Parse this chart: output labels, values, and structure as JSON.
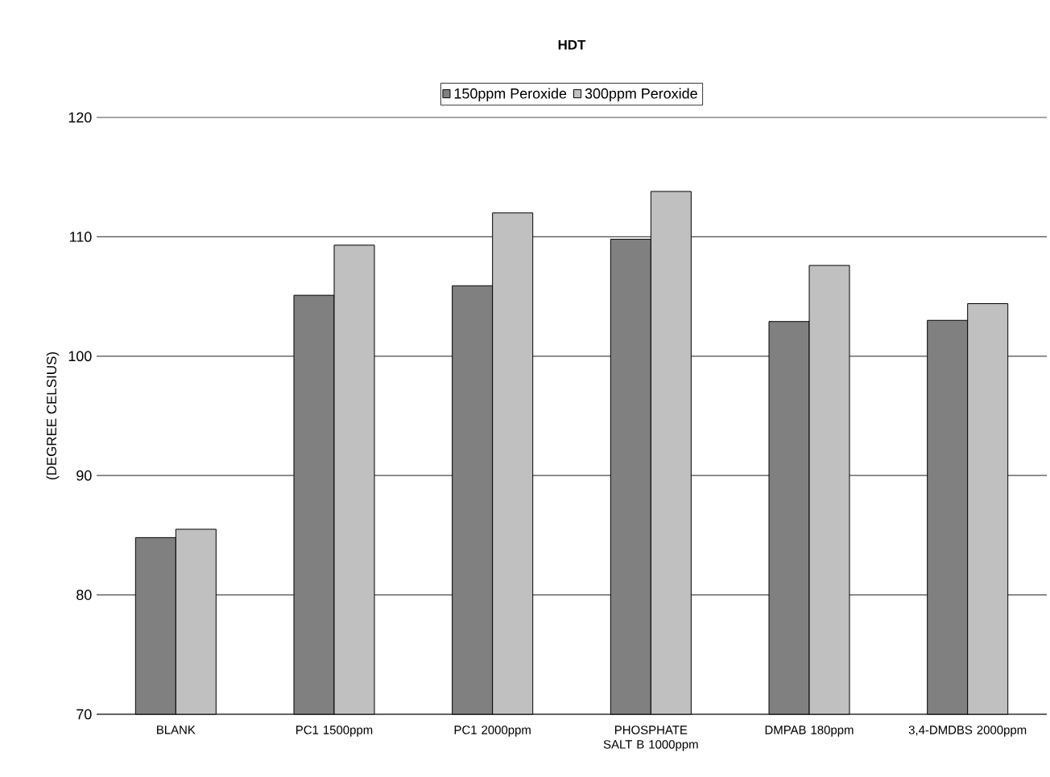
{
  "chart_data": {
    "type": "bar",
    "title": "HDT",
    "ylabel": "(DEGREE CELSIUS)",
    "categories": [
      "BLANK",
      "PC1 1500ppm",
      "PC1 2000ppm",
      "PHOSPHATE SALT B 1000ppm",
      "DMPAB 180ppm",
      "3,4-DMDBS 2000ppm"
    ],
    "series": [
      {
        "name": "150ppm Peroxide",
        "color": "#808080",
        "values": [
          84.8,
          105.1,
          105.9,
          109.8,
          102.9,
          103.0
        ]
      },
      {
        "name": "300ppm Peroxide",
        "color": "#c0c0c0",
        "values": [
          85.5,
          109.3,
          112.0,
          113.8,
          107.6,
          104.4
        ]
      }
    ],
    "ylim": [
      70,
      120
    ],
    "yticks": [
      70,
      80,
      90,
      100,
      110,
      120
    ],
    "grid": "y",
    "legend": "top"
  }
}
